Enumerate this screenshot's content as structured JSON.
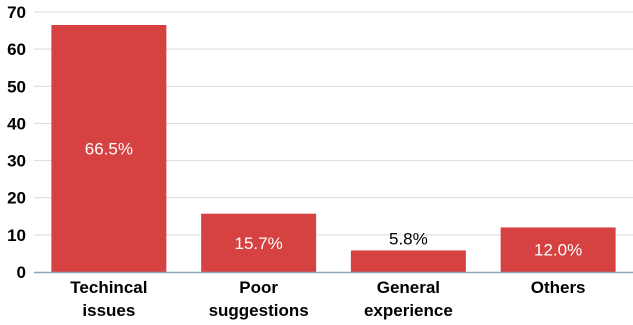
{
  "chart_data": {
    "type": "bar",
    "categories": [
      [
        "Techincal",
        "issues"
      ],
      [
        "Poor",
        "suggestions"
      ],
      [
        "General",
        "experience"
      ],
      [
        "Others"
      ]
    ],
    "values": [
      66.5,
      15.7,
      5.8,
      12.0
    ],
    "data_labels": [
      "66.5%",
      "15.7%",
      "5.8%",
      "12.0%"
    ],
    "yticks": [
      0,
      10,
      20,
      30,
      40,
      50,
      60,
      70
    ],
    "ylim": [
      0,
      70
    ],
    "grid": true,
    "legend": "none",
    "title": "",
    "xlabel": "",
    "ylabel": "",
    "colors": {
      "bar": "#d64242",
      "grid": "#d9d9d9",
      "axis": "#8fa3b5",
      "label_inside": "#ffffff",
      "label_outside": "#000000"
    }
  }
}
